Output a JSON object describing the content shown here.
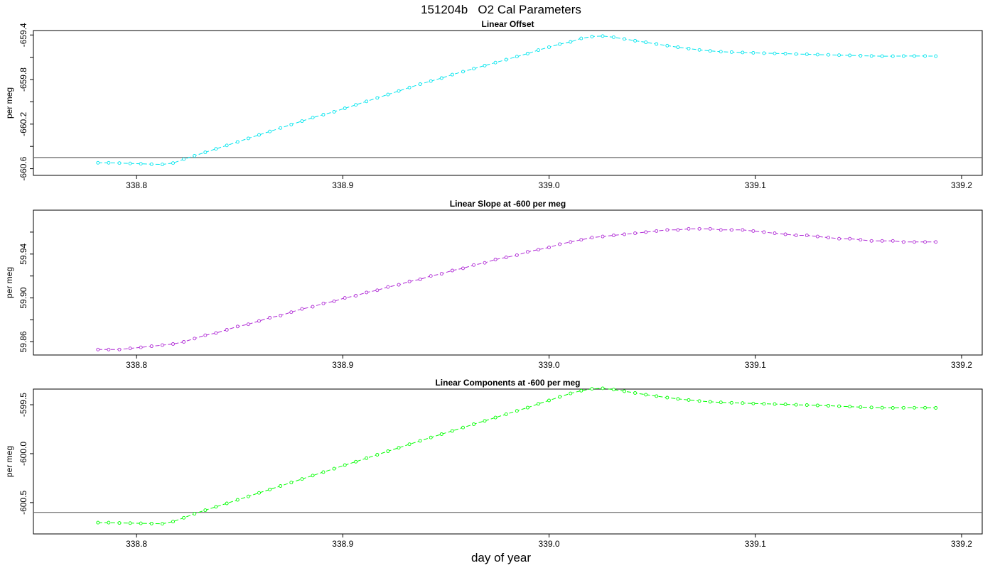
{
  "figure": {
    "title": "151204b   O2 Cal Parameters",
    "xlabel": "day of year"
  },
  "chart_data": [
    {
      "type": "line",
      "title": "Linear Offset",
      "ylabel": "per meg",
      "color": "#00e5ee",
      "xlim": [
        338.75,
        339.21
      ],
      "ylim": [
        -660.66,
        -659.36
      ],
      "xticks": [
        338.8,
        338.9,
        339.0,
        339.1,
        339.2
      ],
      "xtick_labels": [
        "338.8",
        "338.9",
        "339.0",
        "339.1",
        "339.2"
      ],
      "yticks": [
        -660.6,
        -660.4,
        -660.2,
        -660.0,
        -659.8,
        -659.6,
        -659.4
      ],
      "ytick_labels": [
        "-660.6",
        "",
        "-660.2",
        "",
        "-659.8",
        "",
        "-659.4"
      ],
      "hline": -660.5,
      "series": [
        {
          "x": [
            338.7813,
            338.7865,
            338.7917,
            338.7969,
            338.8021,
            338.8073,
            338.8125,
            338.8177,
            338.8229,
            338.8281,
            338.8333,
            338.8385,
            338.8438,
            338.849,
            338.8542,
            338.8594,
            338.8646,
            338.8698,
            338.875,
            338.8802,
            338.8854,
            338.8906,
            338.8958,
            338.901,
            338.9063,
            338.9115,
            338.9167,
            338.9219,
            338.9271,
            338.9323,
            338.9375,
            338.9427,
            338.9479,
            338.9531,
            338.9583,
            338.9635,
            338.9688,
            338.974,
            338.9792,
            338.9844,
            338.9896,
            338.9948,
            339.0,
            339.0052,
            339.0104,
            339.0156,
            339.0208,
            339.026,
            339.0313,
            339.0365,
            339.0417,
            339.0469,
            339.0521,
            339.0573,
            339.0625,
            339.0677,
            339.0729,
            339.0781,
            339.0833,
            339.0885,
            339.0938,
            339.099,
            339.1042,
            339.1094,
            339.1146,
            339.1198,
            339.125,
            339.1302,
            339.1354,
            339.1406,
            339.1458,
            339.151,
            339.1563,
            339.1615,
            339.1667,
            339.1719,
            339.1771,
            339.1823,
            339.1875
          ],
          "y": [
            -660.547,
            -660.547,
            -660.55,
            -660.553,
            -660.556,
            -660.56,
            -660.562,
            -660.55,
            -660.515,
            -660.484,
            -660.453,
            -660.422,
            -660.391,
            -660.36,
            -660.328,
            -660.297,
            -660.266,
            -660.235,
            -660.204,
            -660.173,
            -660.142,
            -660.115,
            -660.089,
            -660.058,
            -660.027,
            -659.996,
            -659.965,
            -659.934,
            -659.903,
            -659.872,
            -659.841,
            -659.814,
            -659.787,
            -659.756,
            -659.729,
            -659.702,
            -659.675,
            -659.648,
            -659.621,
            -659.594,
            -659.567,
            -659.536,
            -659.509,
            -659.482,
            -659.462,
            -659.431,
            -659.414,
            -659.41,
            -659.42,
            -659.436,
            -659.452,
            -659.466,
            -659.481,
            -659.496,
            -659.51,
            -659.522,
            -659.534,
            -659.543,
            -659.55,
            -659.554,
            -659.557,
            -659.56,
            -659.563,
            -659.565,
            -659.567,
            -659.571,
            -659.573,
            -659.576,
            -659.578,
            -659.581,
            -659.583,
            -659.586,
            -659.588,
            -659.59,
            -659.59,
            -659.589,
            -659.589,
            -659.589,
            -659.59
          ]
        }
      ]
    },
    {
      "type": "line",
      "title": "Linear Slope at -600 per meg",
      "ylabel": "per meg",
      "color": "#b02bd6",
      "xlim": [
        338.75,
        339.21
      ],
      "ylim": [
        59.848,
        59.98
      ],
      "xticks": [
        338.8,
        338.9,
        339.0,
        339.1,
        339.2
      ],
      "xtick_labels": [
        "338.8",
        "338.9",
        "339.0",
        "339.1",
        "339.2"
      ],
      "yticks": [
        59.86,
        59.88,
        59.9,
        59.92,
        59.94,
        59.96
      ],
      "ytick_labels": [
        "59.86",
        "",
        "59.90",
        "",
        "59.94",
        ""
      ],
      "series": [
        {
          "x": [
            338.7813,
            338.7865,
            338.7917,
            338.7969,
            338.8021,
            338.8073,
            338.8125,
            338.8177,
            338.8229,
            338.8281,
            338.8333,
            338.8385,
            338.8438,
            338.849,
            338.8542,
            338.8594,
            338.8646,
            338.8698,
            338.875,
            338.8802,
            338.8854,
            338.8906,
            338.8958,
            338.901,
            338.9063,
            338.9115,
            338.9167,
            338.9219,
            338.9271,
            338.9323,
            338.9375,
            338.9427,
            338.9479,
            338.9531,
            338.9583,
            338.9635,
            338.9688,
            338.974,
            338.9792,
            338.9844,
            338.9896,
            338.9948,
            339.0,
            339.0052,
            339.0104,
            339.0156,
            339.0208,
            339.026,
            339.0313,
            339.0365,
            339.0417,
            339.0469,
            339.0521,
            339.0573,
            339.0625,
            339.0677,
            339.0729,
            339.0781,
            339.0833,
            339.0885,
            339.0938,
            339.099,
            339.1042,
            339.1094,
            339.1146,
            339.1198,
            339.125,
            339.1302,
            339.1354,
            339.1406,
            339.1458,
            339.151,
            339.1563,
            339.1615,
            339.1667,
            339.1719,
            339.1771,
            339.1823,
            339.1875
          ],
          "y": [
            59.853,
            59.853,
            59.853,
            59.854,
            59.855,
            59.856,
            59.857,
            59.858,
            59.86,
            59.863,
            59.866,
            59.868,
            59.871,
            59.874,
            59.876,
            59.879,
            59.882,
            59.884,
            59.887,
            59.89,
            59.892,
            59.895,
            59.897,
            59.9,
            59.902,
            59.905,
            59.907,
            59.91,
            59.912,
            59.915,
            59.917,
            59.92,
            59.922,
            59.925,
            59.927,
            59.93,
            59.932,
            59.935,
            59.937,
            59.939,
            59.942,
            59.944,
            59.946,
            59.949,
            59.951,
            59.953,
            59.955,
            59.956,
            59.957,
            59.958,
            59.959,
            59.96,
            59.961,
            59.962,
            59.962,
            59.963,
            59.963,
            59.963,
            59.962,
            59.962,
            59.962,
            59.961,
            59.96,
            59.959,
            59.958,
            59.957,
            59.957,
            59.956,
            59.955,
            59.954,
            59.954,
            59.953,
            59.952,
            59.952,
            59.952,
            59.951,
            59.951,
            59.951,
            59.951
          ]
        }
      ]
    },
    {
      "type": "line",
      "title": "Linear Components at -600 per meg",
      "ylabel": "per meg",
      "color": "#00ff00",
      "xlim": [
        338.75,
        339.21
      ],
      "ylim": [
        -600.82,
        -599.34
      ],
      "xticks": [
        338.8,
        338.9,
        339.0,
        339.1,
        339.2
      ],
      "xtick_labels": [
        "338.8",
        "338.9",
        "339.0",
        "339.1",
        "339.2"
      ],
      "yticks": [
        -600.5,
        -600.0,
        -599.5
      ],
      "ytick_labels": [
        "-600.5",
        "-600.0",
        "-599.5"
      ],
      "hline": -600.6,
      "series": [
        {
          "x": [
            338.7813,
            338.7865,
            338.7917,
            338.7969,
            338.8021,
            338.8073,
            338.8125,
            338.8177,
            338.8229,
            338.8281,
            338.8333,
            338.8385,
            338.8438,
            338.849,
            338.8542,
            338.8594,
            338.8646,
            338.8698,
            338.875,
            338.8802,
            338.8854,
            338.8906,
            338.8958,
            338.901,
            338.9063,
            338.9115,
            338.9167,
            338.9219,
            338.9271,
            338.9323,
            338.9375,
            338.9427,
            338.9479,
            338.9531,
            338.9583,
            338.9635,
            338.9688,
            338.974,
            338.9792,
            338.9844,
            338.9896,
            338.9948,
            339.0,
            339.0052,
            339.0104,
            339.0156,
            339.0208,
            339.026,
            339.0313,
            339.0365,
            339.0417,
            339.0469,
            339.0521,
            339.0573,
            339.0625,
            339.0677,
            339.0729,
            339.0781,
            339.0833,
            339.0885,
            339.0938,
            339.099,
            339.1042,
            339.1094,
            339.1146,
            339.1198,
            339.125,
            339.1302,
            339.1354,
            339.1406,
            339.1458,
            339.151,
            339.1563,
            339.1615,
            339.1667,
            339.1719,
            339.1771,
            339.1823,
            339.1875
          ],
          "y": [
            -600.705,
            -600.705,
            -600.708,
            -600.71,
            -600.712,
            -600.714,
            -600.716,
            -600.694,
            -600.655,
            -600.614,
            -600.578,
            -600.543,
            -600.508,
            -600.472,
            -600.437,
            -600.401,
            -600.366,
            -600.33,
            -600.295,
            -600.259,
            -600.224,
            -600.188,
            -600.153,
            -600.117,
            -600.082,
            -600.046,
            -600.011,
            -599.975,
            -599.94,
            -599.904,
            -599.869,
            -599.835,
            -599.801,
            -599.767,
            -599.733,
            -599.699,
            -599.665,
            -599.631,
            -599.597,
            -599.563,
            -599.529,
            -599.491,
            -599.456,
            -599.42,
            -599.384,
            -599.357,
            -599.338,
            -599.332,
            -599.345,
            -599.362,
            -599.38,
            -599.397,
            -599.412,
            -599.427,
            -599.44,
            -599.452,
            -599.462,
            -599.47,
            -599.476,
            -599.48,
            -599.483,
            -599.487,
            -599.49,
            -599.493,
            -599.496,
            -599.5,
            -599.503,
            -599.507,
            -599.51,
            -599.515,
            -599.519,
            -599.524,
            -599.527,
            -599.53,
            -599.532,
            -599.531,
            -599.531,
            -599.531,
            -599.532
          ]
        }
      ]
    }
  ]
}
